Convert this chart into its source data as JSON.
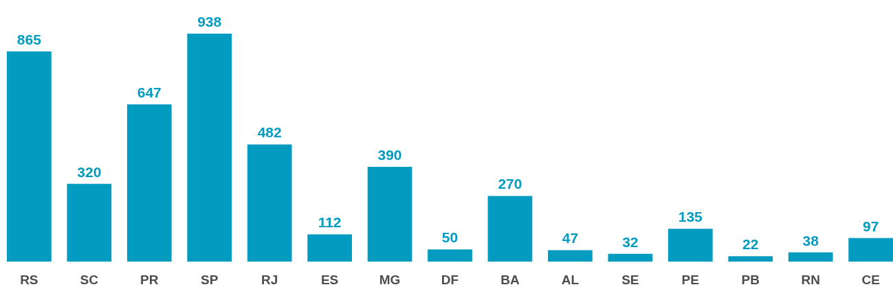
{
  "chart_data": {
    "type": "bar",
    "categories": [
      "RS",
      "SC",
      "PR",
      "SP",
      "RJ",
      "ES",
      "MG",
      "DF",
      "BA",
      "AL",
      "SE",
      "PE",
      "PB",
      "RN",
      "CE"
    ],
    "values": [
      865,
      320,
      647,
      938,
      482,
      112,
      390,
      50,
      270,
      47,
      32,
      135,
      22,
      38,
      97
    ],
    "color": "#039cc0",
    "data_labels": true,
    "ylim": [
      0,
      938
    ]
  }
}
